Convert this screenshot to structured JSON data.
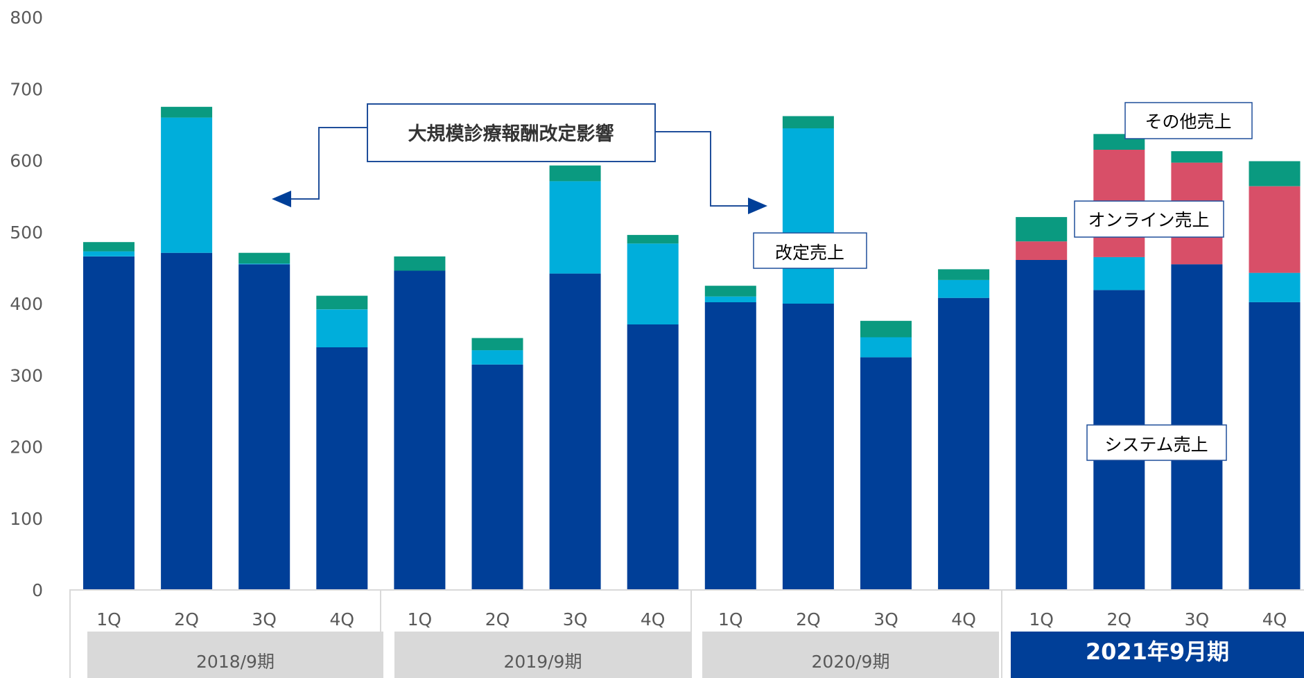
{
  "chart_data": {
    "type": "bar",
    "stacked": true,
    "title": "",
    "xlabel": "",
    "ylabel": "",
    "ylim": [
      0,
      800
    ],
    "yticks": [
      0,
      100,
      200,
      300,
      400,
      500,
      600,
      700,
      800
    ],
    "grid": false,
    "categories": [
      "1Q",
      "2Q",
      "3Q",
      "4Q",
      "1Q",
      "2Q",
      "3Q",
      "4Q",
      "1Q",
      "2Q",
      "3Q",
      "4Q",
      "1Q",
      "2Q",
      "3Q",
      "4Q"
    ],
    "fiscal_years": [
      {
        "label": "2018/9期",
        "highlight": false
      },
      {
        "label": "2019/9期",
        "highlight": false
      },
      {
        "label": "2020/9期",
        "highlight": false
      },
      {
        "label": "2021年9月期",
        "highlight": true
      }
    ],
    "series": [
      {
        "name": "システム売上",
        "color": "#003f98",
        "values": [
          466,
          471,
          455,
          339,
          446,
          315,
          442,
          371,
          402,
          400,
          325,
          408,
          461,
          419,
          455,
          402
        ]
      },
      {
        "name": "改定売上",
        "color": "#00aedb",
        "values": [
          7,
          189,
          1,
          53,
          0,
          20,
          129,
          113,
          8,
          245,
          28,
          25,
          0,
          46,
          0,
          41
        ]
      },
      {
        "name": "オンライン売上",
        "color": "#d84f68",
        "values": [
          0,
          0,
          0,
          0,
          0,
          0,
          0,
          0,
          0,
          0,
          0,
          0,
          26,
          150,
          142,
          121
        ]
      },
      {
        "name": "その他売上",
        "color": "#0a9a80",
        "values": [
          13,
          15,
          15,
          19,
          20,
          17,
          22,
          12,
          15,
          17,
          23,
          15,
          34,
          22,
          16,
          35
        ]
      }
    ],
    "annotations": {
      "main_callout": "大規模診療報酬改定影響",
      "labels": [
        "その他売上",
        "オンライン売上",
        "改定売上",
        "システム売上"
      ]
    }
  },
  "colors": {
    "axis_text": "#595959",
    "fy_box": "#d9d9d9",
    "fy_box_highlight": "#003f98",
    "callout_border": "#1f4e9a",
    "arrow": "#003f98"
  }
}
